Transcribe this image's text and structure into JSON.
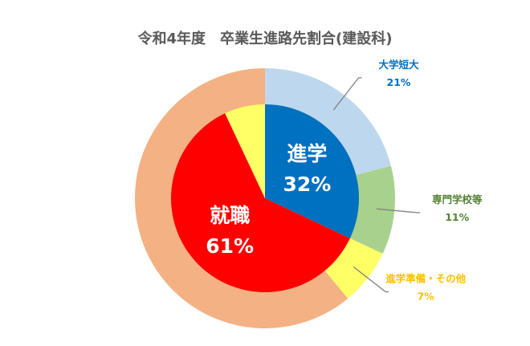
{
  "chart_data": {
    "type": "pie",
    "title": "令和4年度　卒業生進路先割合(建設科)",
    "inner_ring": [
      {
        "label": "進学",
        "value": 32,
        "value_text": "32%",
        "color": "#0070C0"
      },
      {
        "label": "就職",
        "value": 61,
        "value_text": "61%",
        "color": "#FF0000"
      },
      {
        "label": "",
        "value": 7,
        "value_text": "",
        "color": "#FFFF66"
      }
    ],
    "outer_ring": [
      {
        "label": "大学短大",
        "value": 21,
        "value_text": "21%",
        "color": "#BDD7EE",
        "text_color": "#0070C0"
      },
      {
        "label": "専門学校等",
        "value": 11,
        "value_text": "11%",
        "color": "#A9D18E",
        "text_color": "#548235"
      },
      {
        "label": "進学準備・その他",
        "value": 7,
        "value_text": "7%",
        "color": "#FFFF66",
        "text_color": "#FFC000"
      },
      {
        "label": "",
        "value": 61,
        "value_text": "",
        "color": "#F4B183",
        "text_color": "#000000"
      }
    ]
  }
}
